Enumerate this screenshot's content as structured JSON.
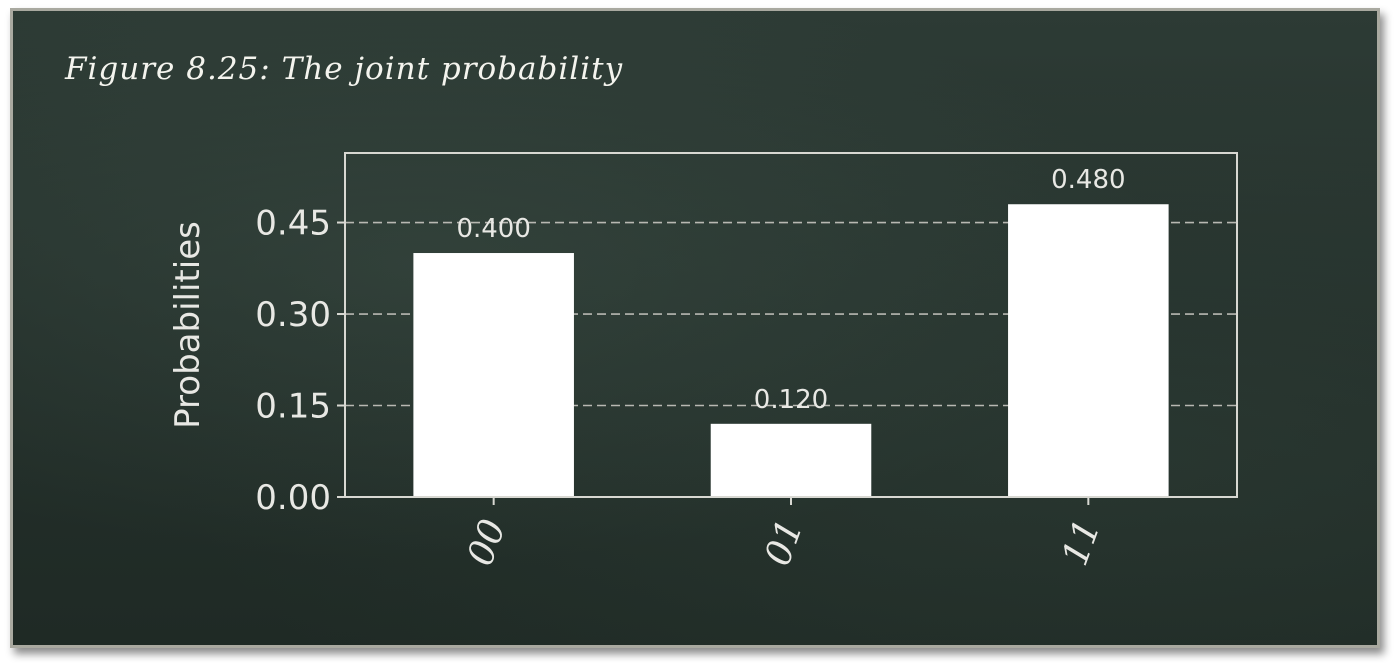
{
  "caption": "Figure 8.25: The joint probability",
  "chart_data": {
    "type": "bar",
    "categories": [
      "00",
      "01",
      "11"
    ],
    "values": [
      0.4,
      0.12,
      0.48
    ],
    "value_labels": [
      "0.400",
      "0.120",
      "0.480"
    ],
    "ylabel": "Probabilities",
    "xlabel": "",
    "ylim": [
      0,
      0.564
    ],
    "yticks": [
      0,
      0.15,
      0.3,
      0.45
    ],
    "ytick_labels": [
      "0.00",
      "0.15",
      "0.30",
      "0.45"
    ],
    "grid": "horizontal dashed",
    "colors": {
      "bars": "#ffffff",
      "axes": "#d8d8d2",
      "grid": "#b8b8b2",
      "text": "#e8e8e4",
      "background": "#24302b"
    }
  }
}
